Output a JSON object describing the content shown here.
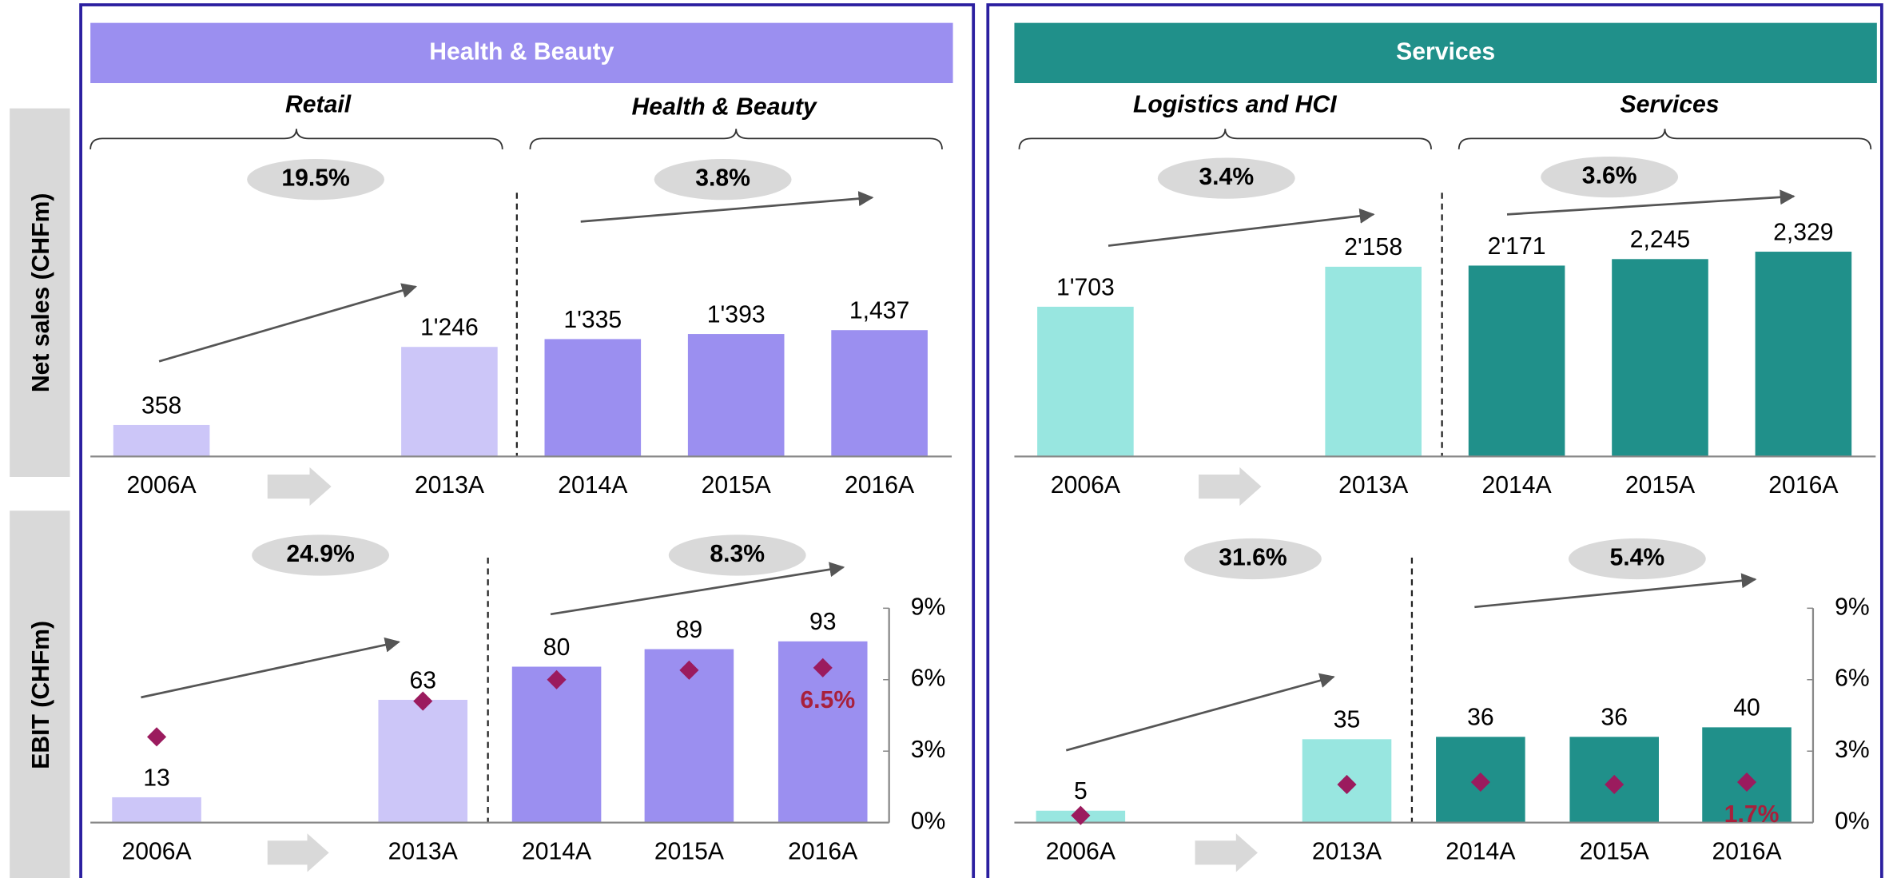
{
  "row_labels": [
    "Net sales (CHFm)",
    "EBIT (CHFm)"
  ],
  "panels": [
    {
      "title": "Health & Beauty",
      "groups": [
        "Retail",
        "Health & Beauty"
      ]
    },
    {
      "title": "Services",
      "groups": [
        "Logistics and HCI",
        "Services"
      ]
    }
  ],
  "chart_data": [
    {
      "type": "bar",
      "categories": [
        "2006A",
        "2013A",
        "2014A",
        "2015A",
        "2016A"
      ],
      "values": [
        358,
        1246,
        1335,
        1393,
        1437
      ],
      "value_labels": [
        "358",
        "1'246",
        "1'335",
        "1'393",
        "1,437"
      ],
      "colors": [
        "#ccc6f8",
        "#ccc6f8",
        "#9b8ff0",
        "#9b8ff0",
        "#9b8ff0"
      ],
      "ylim": [
        0,
        3000
      ],
      "annotations": [
        "19.5%",
        "3.8%"
      ]
    },
    {
      "type": "bar",
      "categories": [
        "2006A",
        "2013A",
        "2014A",
        "2015A",
        "2016A"
      ],
      "values": [
        1703,
        2158,
        2171,
        2245,
        2329
      ],
      "value_labels": [
        "1'703",
        "2'158",
        "2'171",
        "2,245",
        "2,329"
      ],
      "colors": [
        "#98e6e0",
        "#98e6e0",
        "#20908a",
        "#20908a",
        "#20908a"
      ],
      "ylim": [
        0,
        3000
      ],
      "annotations": [
        "3.4%",
        "3.6%"
      ]
    },
    {
      "type": "bar",
      "categories": [
        "2006A",
        "2013A",
        "2014A",
        "2015A",
        "2016A"
      ],
      "values": [
        13,
        63,
        80,
        89,
        93
      ],
      "colors": [
        "#ccc6f8",
        "#ccc6f8",
        "#9b8ff0",
        "#9b8ff0",
        "#9b8ff0"
      ],
      "ylim": [
        0,
        110
      ],
      "annotations": [
        "24.9%",
        "8.3%"
      ],
      "margin": {
        "values": [
          3.6,
          5.1,
          6.0,
          6.4,
          6.5
        ],
        "value_labels": [
          null,
          null,
          null,
          null,
          "6.5%"
        ],
        "color": "#9b1b5e",
        "axis": "y2"
      },
      "y2lim": [
        0,
        9
      ],
      "y2ticks": [
        {
          "value": 0,
          "label": "0%"
        },
        {
          "value": 3,
          "label": "3%"
        },
        {
          "value": 6,
          "label": "6%"
        },
        {
          "value": 9,
          "label": "9%"
        }
      ]
    },
    {
      "type": "bar",
      "categories": [
        "2006A",
        "2013A",
        "2014A",
        "2015A",
        "2016A"
      ],
      "values": [
        5,
        35,
        36,
        36,
        40
      ],
      "colors": [
        "#98e6e0",
        "#98e6e0",
        "#20908a",
        "#20908a",
        "#20908a"
      ],
      "ylim": [
        0,
        90
      ],
      "annotations": [
        "31.6%",
        "5.4%"
      ],
      "margin": {
        "values": [
          0.3,
          1.6,
          1.7,
          1.6,
          1.7
        ],
        "value_labels": [
          null,
          null,
          null,
          null,
          "1.7%"
        ],
        "color": "#9b1b5e",
        "axis": "y2"
      },
      "y2lim": [
        0,
        9
      ],
      "y2ticks": [
        {
          "value": 0,
          "label": "0%"
        },
        {
          "value": 3,
          "label": "3%"
        },
        {
          "value": 6,
          "label": "6%"
        },
        {
          "value": 9,
          "label": "9%"
        }
      ]
    }
  ]
}
